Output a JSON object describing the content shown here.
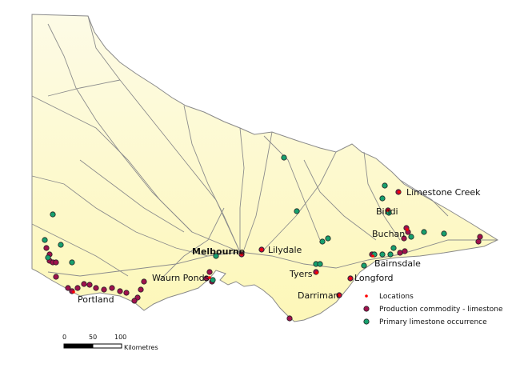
{
  "map": {
    "colors": {
      "land_top": "#fdfbe6",
      "land_bottom": "#fdf7b8",
      "border": "#8a8a8a",
      "roads": "#8c8c8c",
      "location": "#ff0000",
      "production": "#a0124e",
      "occurrence": "#17a06e"
    },
    "places": [
      {
        "name": "Limestone Creek",
        "bold": false
      },
      {
        "name": "Bindi",
        "bold": false
      },
      {
        "name": "Buchan",
        "bold": false
      },
      {
        "name": "Bairnsdale",
        "bold": false
      },
      {
        "name": "Lilydale",
        "bold": false
      },
      {
        "name": "Melbourne",
        "bold": true
      },
      {
        "name": "Tyers",
        "bold": false
      },
      {
        "name": "Longford",
        "bold": false
      },
      {
        "name": "Darriman",
        "bold": false
      },
      {
        "name": "Waurn Ponds",
        "bold": false
      },
      {
        "name": "Portland",
        "bold": false
      }
    ]
  },
  "legend": {
    "items": [
      {
        "label": "Locations",
        "symbol": "location"
      },
      {
        "label": "Production commodity - limestone",
        "symbol": "production"
      },
      {
        "label": "Primary limestone occurrence",
        "symbol": "occurrence"
      }
    ]
  },
  "scale_bar": {
    "ticks": [
      "0",
      "50",
      "100"
    ],
    "unit": "Kilometres"
  }
}
